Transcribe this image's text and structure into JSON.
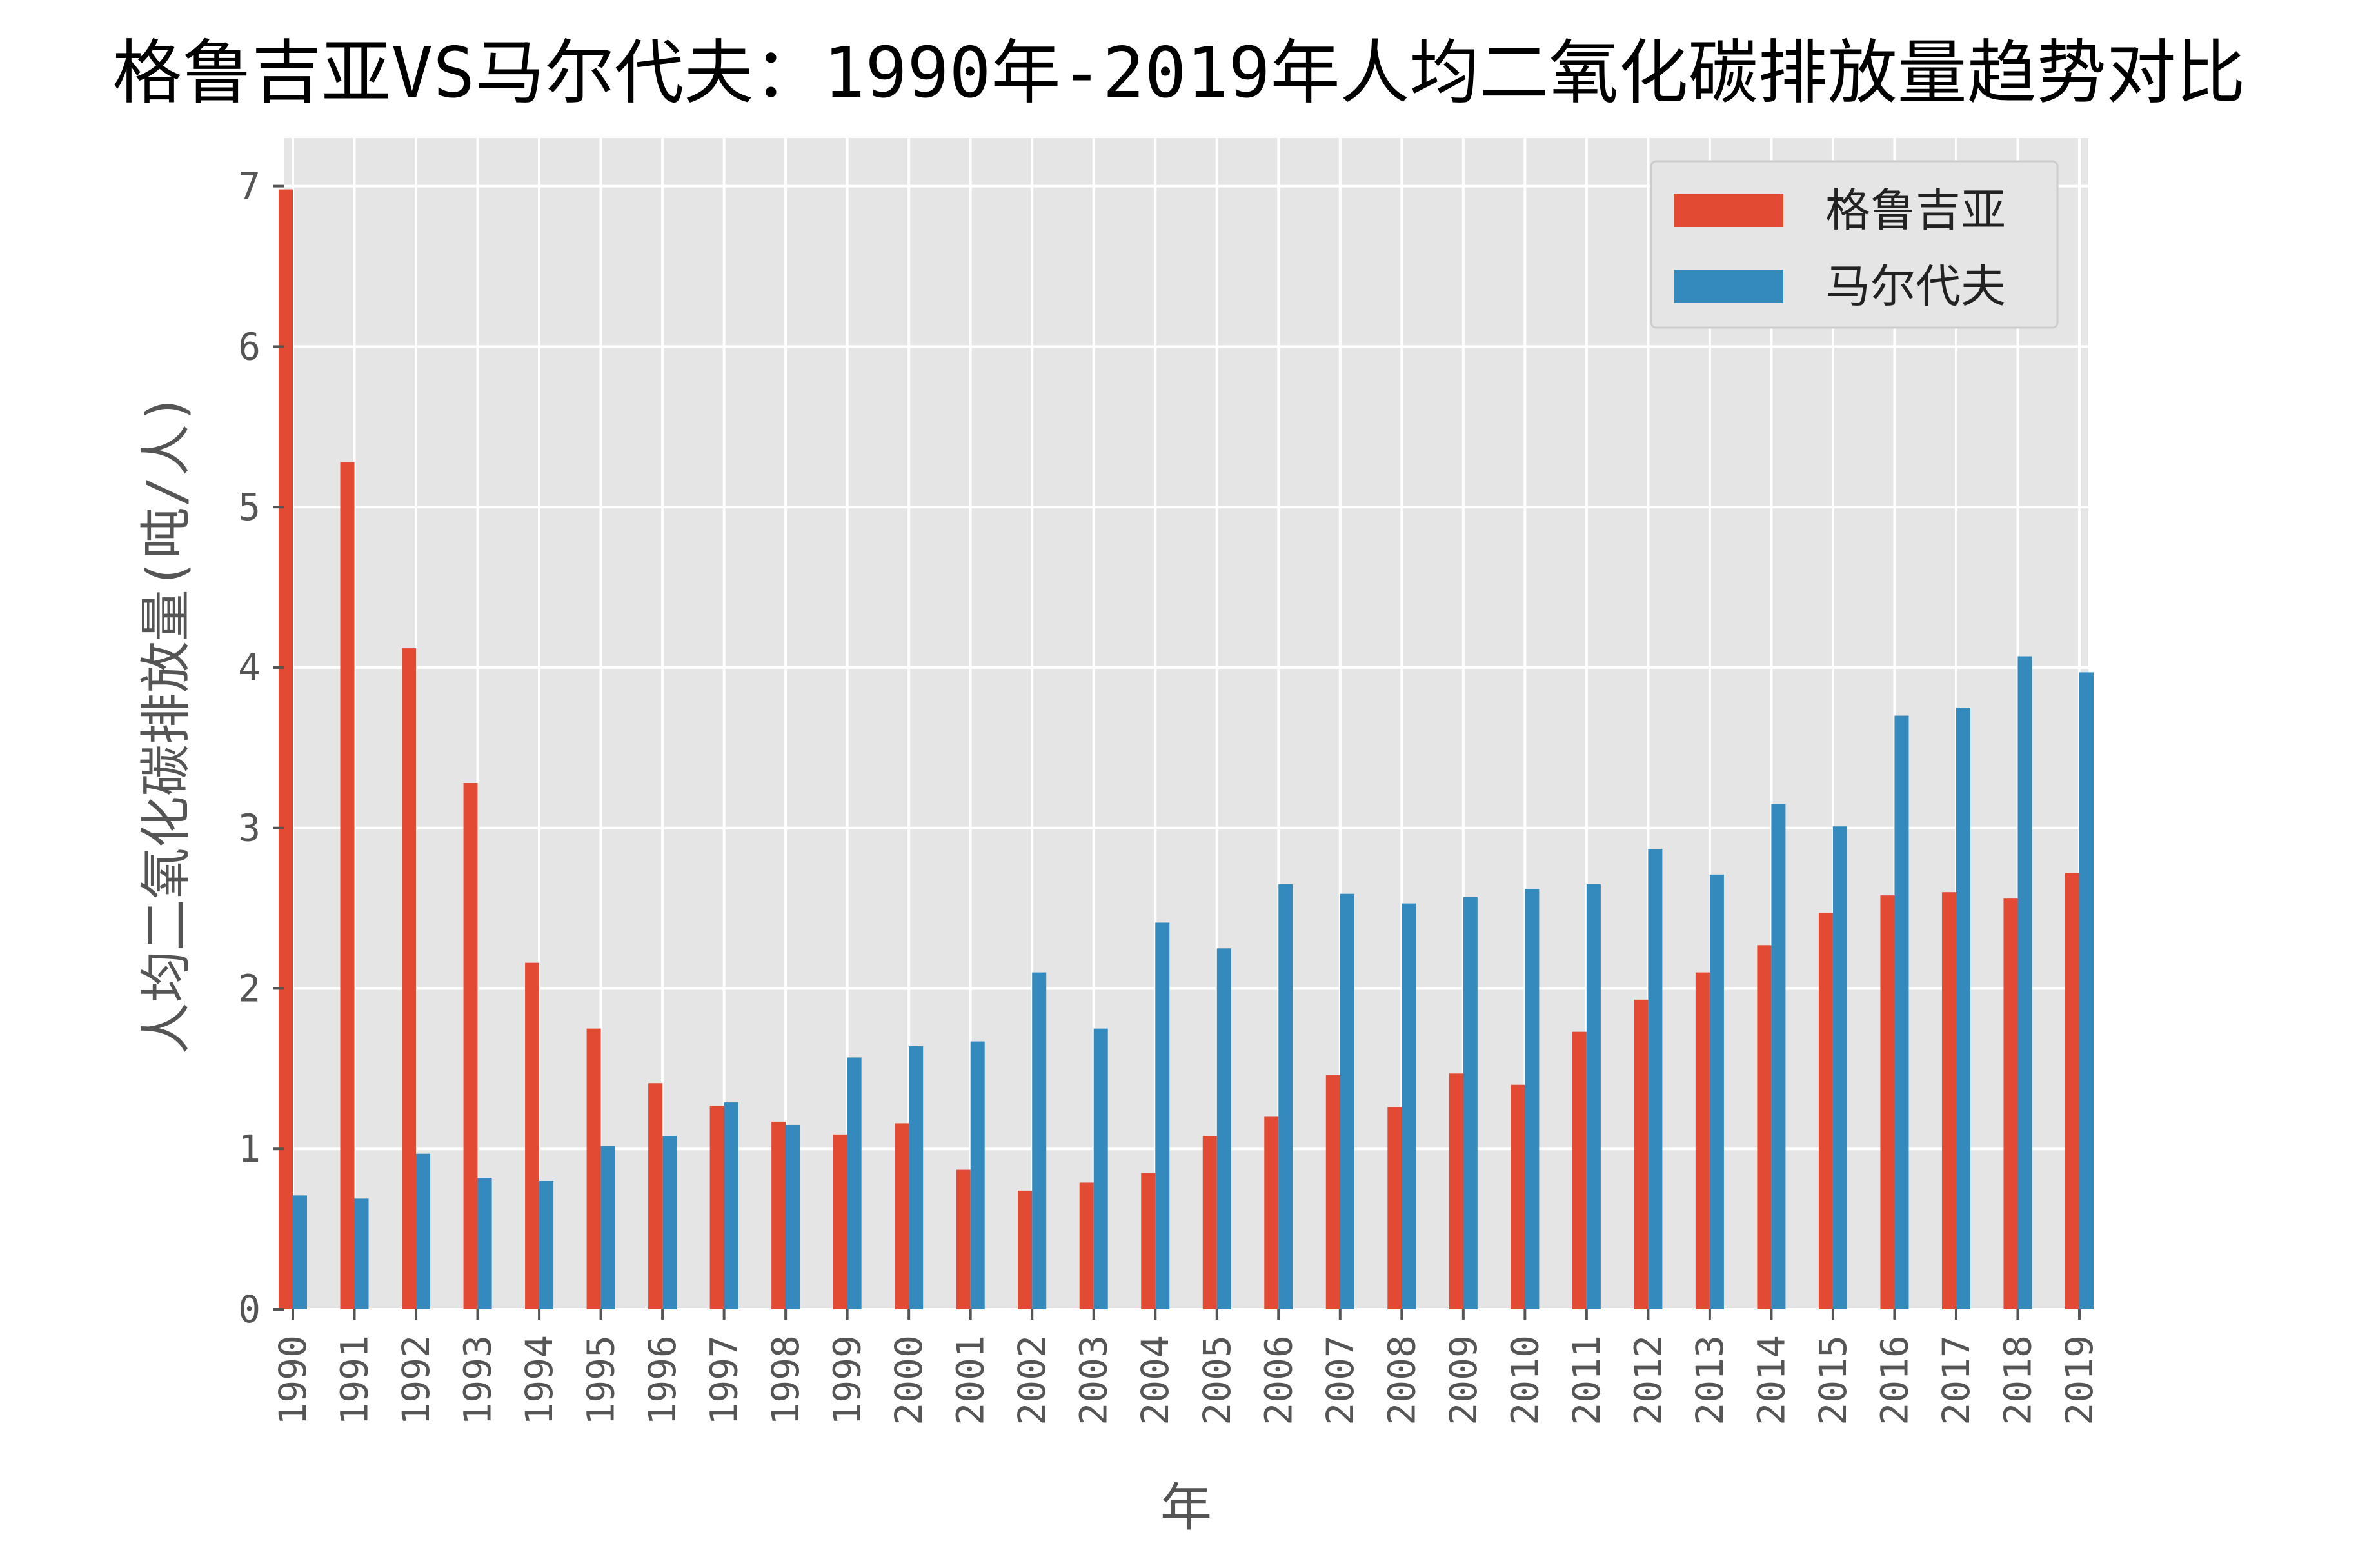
{
  "chart_data": {
    "type": "bar",
    "title": "格鲁吉亚VS马尔代夫：1990年-2019年人均二氧化碳排放量趋势对比",
    "xlabel": "年",
    "ylabel": "人均二氧化碳排放量(吨/人)",
    "ylim": [
      0,
      7.3
    ],
    "yticks": [
      "0",
      "1",
      "2",
      "3",
      "4",
      "5",
      "6",
      "7"
    ],
    "grid": true,
    "legend_position": "top-right",
    "categories": [
      "1990",
      "1991",
      "1992",
      "1993",
      "1994",
      "1995",
      "1996",
      "1997",
      "1998",
      "1999",
      "2000",
      "2001",
      "2002",
      "2003",
      "2004",
      "2005",
      "2006",
      "2007",
      "2008",
      "2009",
      "2010",
      "2011",
      "2012",
      "2013",
      "2014",
      "2015",
      "2016",
      "2017",
      "2018",
      "2019"
    ],
    "series": [
      {
        "name": "格鲁吉亚",
        "color": "#E24A33",
        "values": [
          6.98,
          5.28,
          4.12,
          3.28,
          2.16,
          1.75,
          1.41,
          1.27,
          1.17,
          1.09,
          1.16,
          0.87,
          0.74,
          0.79,
          0.85,
          1.08,
          1.2,
          1.46,
          1.26,
          1.47,
          1.4,
          1.73,
          1.93,
          2.1,
          2.27,
          2.47,
          2.58,
          2.6,
          2.56,
          2.72
        ]
      },
      {
        "name": "马尔代夫",
        "color": "#348ABD",
        "values": [
          0.71,
          0.69,
          0.97,
          0.82,
          0.8,
          1.02,
          1.08,
          1.29,
          1.15,
          1.57,
          1.64,
          1.67,
          2.1,
          1.75,
          2.41,
          2.25,
          2.65,
          2.59,
          2.53,
          2.57,
          2.62,
          2.65,
          2.87,
          2.71,
          3.15,
          3.01,
          3.7,
          3.75,
          4.07,
          3.97
        ]
      }
    ]
  }
}
